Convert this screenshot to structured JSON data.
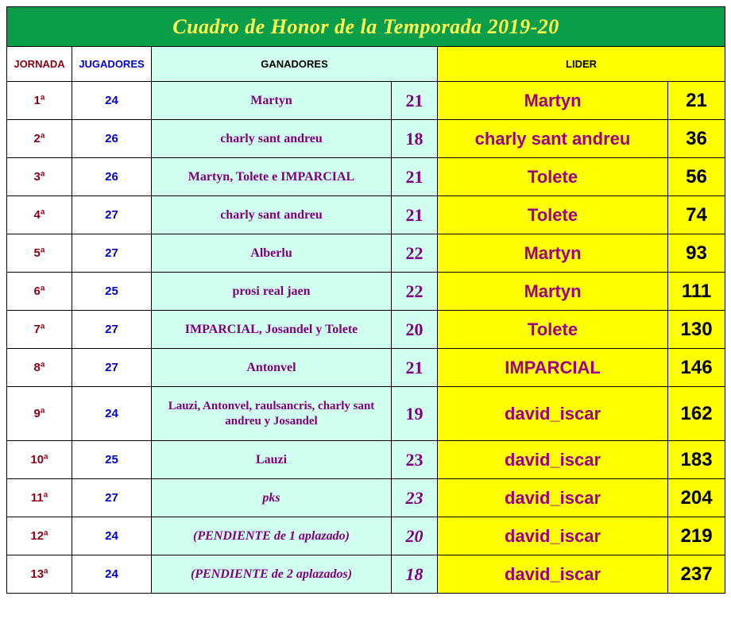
{
  "title": "Cuadro de Honor de la Temporada    2019-20",
  "headers": {
    "jornada": "JORNADA",
    "jugadores": "JUGADORES",
    "ganadores": "GANADORES",
    "lider": "LIDER"
  },
  "rows": [
    {
      "jornada": "1ª",
      "jugadores": "24",
      "ganador": "Martyn",
      "g_score": "21",
      "g_italic": false,
      "lider": "Martyn",
      "l_score": "21",
      "tall": false
    },
    {
      "jornada": "2ª",
      "jugadores": "26",
      "ganador": "charly sant andreu",
      "g_score": "18",
      "g_italic": false,
      "lider": "charly sant andreu",
      "l_score": "36",
      "tall": false
    },
    {
      "jornada": "3ª",
      "jugadores": "26",
      "ganador": "Martyn, Tolete e IMPARCIAL",
      "g_score": "21",
      "g_italic": false,
      "lider": "Tolete",
      "l_score": "56",
      "tall": false
    },
    {
      "jornada": "4ª",
      "jugadores": "27",
      "ganador": "charly sant andreu",
      "g_score": "21",
      "g_italic": false,
      "lider": "Tolete",
      "l_score": "74",
      "tall": false
    },
    {
      "jornada": "5ª",
      "jugadores": "27",
      "ganador": "Alberlu",
      "g_score": "22",
      "g_italic": false,
      "lider": "Martyn",
      "l_score": "93",
      "tall": false
    },
    {
      "jornada": "6ª",
      "jugadores": "25",
      "ganador": "prosi real jaen",
      "g_score": "22",
      "g_italic": false,
      "lider": "Martyn",
      "l_score": "111",
      "tall": false
    },
    {
      "jornada": "7ª",
      "jugadores": "27",
      "ganador": "IMPARCIAL, Josandel y Tolete",
      "g_score": "20",
      "g_italic": false,
      "lider": "Tolete",
      "l_score": "130",
      "tall": false
    },
    {
      "jornada": "8ª",
      "jugadores": "27",
      "ganador": "Antonvel",
      "g_score": "21",
      "g_italic": false,
      "lider": "IMPARCIAL",
      "l_score": "146",
      "tall": false
    },
    {
      "jornada": "9ª",
      "jugadores": "24",
      "ganador": "Lauzi, Antonvel, raulsancris, charly sant andreu y Josandel",
      "g_score": "19",
      "g_italic": false,
      "lider": "david_iscar",
      "l_score": "162",
      "tall": true
    },
    {
      "jornada": "10ª",
      "jugadores": "25",
      "ganador": "Lauzi",
      "g_score": "23",
      "g_italic": false,
      "lider": "david_iscar",
      "l_score": "183",
      "tall": false
    },
    {
      "jornada": "11ª",
      "jugadores": "27",
      "ganador": "pks",
      "g_score": "23",
      "g_italic": true,
      "lider": "david_iscar",
      "l_score": "204",
      "tall": false
    },
    {
      "jornada": "12ª",
      "jugadores": "24",
      "ganador": "(PENDIENTE de 1 aplazado)",
      "g_score": "20",
      "g_italic": true,
      "lider": "david_iscar",
      "l_score": "219",
      "tall": false
    },
    {
      "jornada": "13ª",
      "jugadores": "24",
      "ganador": "(PENDIENTE de 2 aplazados)",
      "g_score": "18",
      "g_italic": true,
      "lider": "david_iscar",
      "l_score": "237",
      "tall": false
    }
  ],
  "styling": {
    "title_bg": "#0a9e4b",
    "title_color": "#ffff4f",
    "ganadores_bg": "#d0fff0",
    "lider_bg": "#ffff00",
    "jornada_color": "#8b0015",
    "jugadores_color": "#0000cc",
    "ganador_text_color": "#800080",
    "lider_name_color": "#a00080",
    "lider_score_color": "#000000",
    "border_color": "#000000"
  }
}
